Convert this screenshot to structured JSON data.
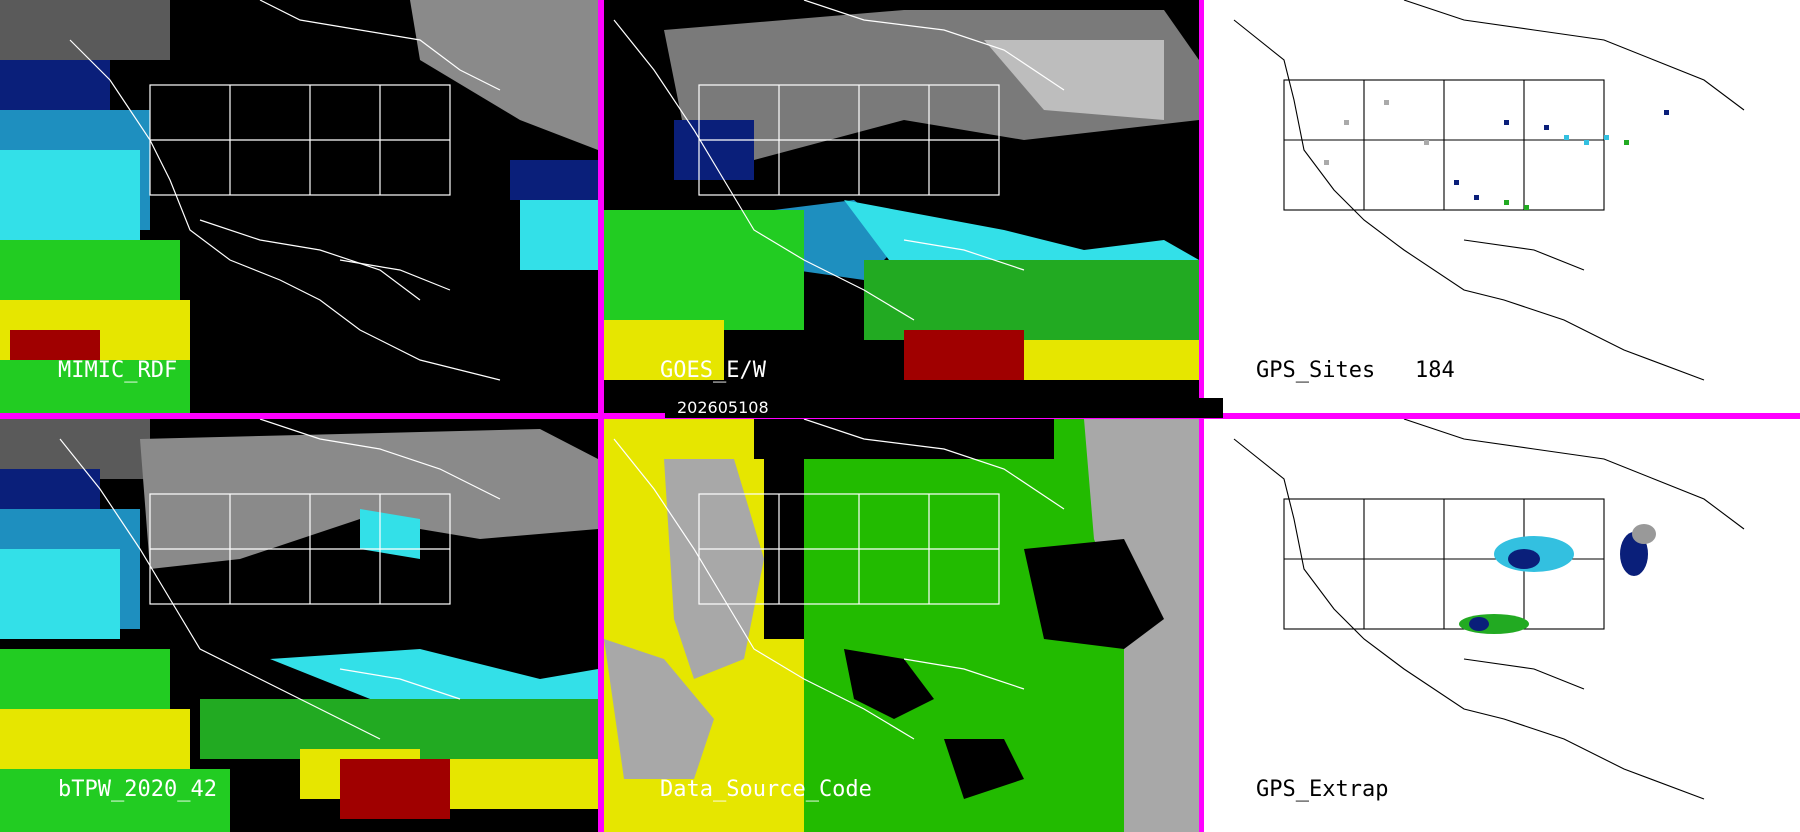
{
  "panels": {
    "mimic": {
      "label": "MIMIC_RDF"
    },
    "goes": {
      "label": "GOES_E/W"
    },
    "gps_sites": {
      "label": "GPS_Sites",
      "count": "184"
    },
    "btpw": {
      "label": "bTPW_2020_42"
    },
    "data_source": {
      "label": "Data_Source_Code"
    },
    "gps_extrap": {
      "label": "GPS_Extrap"
    }
  },
  "timestamp": "202605108",
  "colors": {
    "frame": "#ff00ff",
    "dry_gray": "#9a9a9a",
    "navy": "#0a1f7a",
    "cyan": "#33e0e8",
    "green": "#22cc22",
    "yellow": "#e6e600",
    "dark_red": "#a00000",
    "source_yellow": "#e6e600",
    "source_green": "#22bb00",
    "source_gray": "#a8a8a8"
  }
}
